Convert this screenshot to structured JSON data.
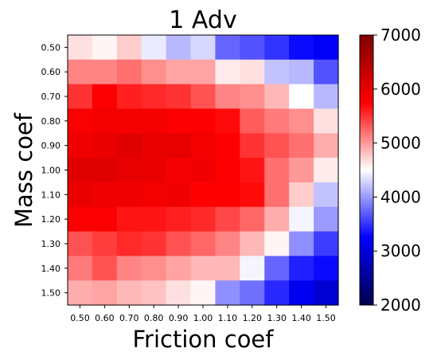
{
  "chart_data": {
    "type": "heatmap",
    "title": "1 Adv",
    "xlabel": "Friction coef",
    "ylabel": "Mass coef",
    "x": [
      "0.50",
      "0.60",
      "0.70",
      "0.80",
      "0.90",
      "1.00",
      "1.10",
      "1.20",
      "1.30",
      "1.40",
      "1.50"
    ],
    "y": [
      "0.50",
      "0.60",
      "0.70",
      "0.80",
      "0.90",
      "1.00",
      "1.10",
      "1.20",
      "1.30",
      "1.40",
      "1.50"
    ],
    "values": [
      [
        4650,
        4550,
        4750,
        4400,
        4150,
        4300,
        3750,
        3650,
        3500,
        3300,
        3200
      ],
      [
        5100,
        5100,
        5200,
        5050,
        4950,
        4950,
        4600,
        4650,
        4200,
        4150,
        3650
      ],
      [
        5500,
        5800,
        5600,
        5550,
        5500,
        5350,
        5100,
        5050,
        4850,
        4500,
        4150
      ],
      [
        5800,
        5850,
        5850,
        5850,
        5800,
        5800,
        5700,
        5300,
        5150,
        5050,
        4650
      ],
      [
        5900,
        5950,
        6050,
        5950,
        6000,
        5850,
        5750,
        5500,
        5350,
        5200,
        4900
      ],
      [
        6050,
        6050,
        6000,
        5950,
        5850,
        5900,
        5750,
        5650,
        5200,
        5000,
        4600
      ],
      [
        5950,
        5900,
        5900,
        5850,
        5900,
        5750,
        5750,
        5700,
        5200,
        4750,
        4200
      ],
      [
        5800,
        5800,
        5650,
        5650,
        5600,
        5550,
        5400,
        5250,
        4900,
        4450,
        4000
      ],
      [
        5350,
        5450,
        5550,
        5500,
        5350,
        5250,
        5100,
        4850,
        4550,
        3950,
        3550
      ],
      [
        5150,
        5350,
        5100,
        5050,
        4950,
        4850,
        4850,
        4450,
        3750,
        3400,
        3300
      ],
      [
        4900,
        4950,
        4850,
        4800,
        4650,
        4550,
        3950,
        3800,
        3450,
        3150,
        2950
      ]
    ],
    "colorbar": {
      "min": 2000,
      "max": 7000,
      "ticks": [
        "7000",
        "6000",
        "5000",
        "4000",
        "3000",
        "2000"
      ],
      "colormap": "seismic"
    },
    "grid": false
  }
}
